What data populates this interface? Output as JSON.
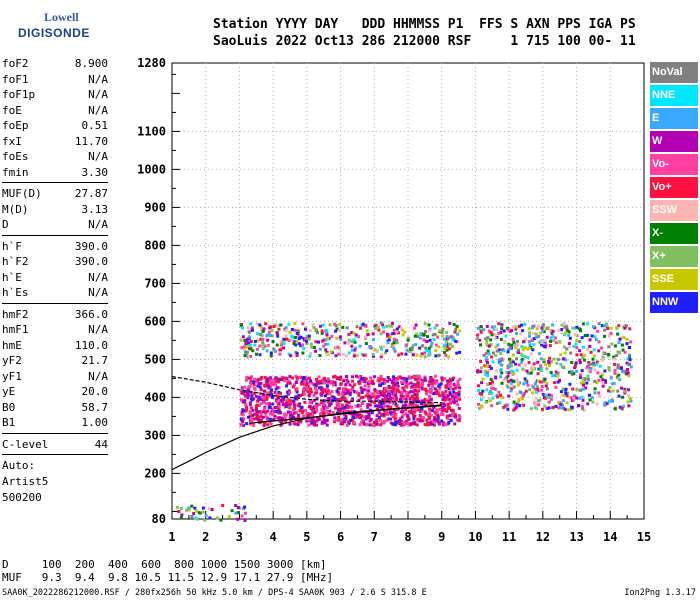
{
  "logo": {
    "line1": "Lowell",
    "line2": "DIGISONDE"
  },
  "header": {
    "row1": "Station YYYY DAY   DDD HHMMSS P1  FFS S AXN PPS IGA PS",
    "row2": "SaoLuis 2022 Oct13 286 212000 RSF     1 715 100 00- 11"
  },
  "params": {
    "group1": [
      {
        "label": "foF2",
        "value": "8.900"
      },
      {
        "label": "foF1",
        "value": "N/A"
      },
      {
        "label": "foF1p",
        "value": "N/A"
      },
      {
        "label": "foE",
        "value": "N/A"
      },
      {
        "label": "foEp",
        "value": "0.51"
      },
      {
        "label": "fxI",
        "value": "11.70"
      },
      {
        "label": "foEs",
        "value": "N/A"
      },
      {
        "label": "fmin",
        "value": "3.30"
      }
    ],
    "group2": [
      {
        "label": "MUF(D)",
        "value": "27.87"
      },
      {
        "label": "M(D)",
        "value": "3.13"
      },
      {
        "label": "D",
        "value": "N/A"
      }
    ],
    "group3": [
      {
        "label": "h`F",
        "value": "390.0"
      },
      {
        "label": "h`F2",
        "value": "390.0"
      },
      {
        "label": "h`E",
        "value": "N/A"
      },
      {
        "label": "h`Es",
        "value": "N/A"
      }
    ],
    "group4": [
      {
        "label": "hmF2",
        "value": "366.0"
      },
      {
        "label": "hmF1",
        "value": "N/A"
      },
      {
        "label": "hmE",
        "value": "110.0"
      },
      {
        "label": "yF2",
        "value": "21.7"
      },
      {
        "label": "yF1",
        "value": "N/A"
      },
      {
        "label": "yE",
        "value": "20.0"
      },
      {
        "label": "B0",
        "value": "58.7"
      },
      {
        "label": "B1",
        "value": "1.00"
      }
    ],
    "clevel": {
      "label": "C-level",
      "value": "44"
    },
    "auto": [
      "Auto:",
      "Artist5",
      "500200"
    ]
  },
  "legend": [
    {
      "label": "NoVal",
      "color": "#808080"
    },
    {
      "label": "NNE",
      "color": "#00e6ff"
    },
    {
      "label": "E",
      "color": "#3aa8ff"
    },
    {
      "label": "W",
      "color": "#b400b4"
    },
    {
      "label": "Vo-",
      "color": "#ff40a0"
    },
    {
      "label": "Vo+",
      "color": "#ff1040"
    },
    {
      "label": "SSW",
      "color": "#ffb4b4"
    },
    {
      "label": "X-",
      "color": "#008000"
    },
    {
      "label": "X+",
      "color": "#80c060"
    },
    {
      "label": "SSE",
      "color": "#c8c800"
    },
    {
      "label": "NNW",
      "color": "#2020ff"
    }
  ],
  "footer": {
    "d_row": "D     100  200  400  600  800 1000 1500 3000 [km]",
    "muf_row": "MUF   9.3  9.4  9.8 10.5 11.5 12.9 17.1 27.9 [MHz]",
    "file_row": "SAA0K_2022286212000.RSF / 280fx256h 50 kHz 5.0 km / DPS-4 SAA0K 903 / 2.6 S 315.8 E",
    "version": "Ion2Png 1.3.17"
  },
  "chart_data": {
    "type": "scatter",
    "title": "",
    "xlabel": "",
    "ylabel": "",
    "xlim": [
      1,
      15
    ],
    "ylim": [
      80,
      1280
    ],
    "x_ticks": [
      "1",
      "2",
      "3",
      "4",
      "5",
      "6",
      "7",
      "8",
      "9",
      "10",
      "11",
      "12",
      "13",
      "14",
      "15"
    ],
    "y_ticks": [
      "80",
      "200",
      "300",
      "400",
      "500",
      "600",
      "700",
      "800",
      "900",
      "1000",
      "1100",
      "1280"
    ],
    "grid": true,
    "legend_position": "right",
    "echo_regions": [
      {
        "name": "main F-trace",
        "x": [
          3.0,
          9.5
        ],
        "y": [
          330,
          460
        ]
      },
      {
        "name": "upper trace",
        "x": [
          3.0,
          9.5
        ],
        "y": [
          510,
          600
        ]
      },
      {
        "name": "spread F",
        "x": [
          10.0,
          14.6
        ],
        "y": [
          370,
          600
        ]
      },
      {
        "name": "low echoes",
        "x": [
          1.0,
          3.2
        ],
        "y": [
          80,
          120
        ]
      }
    ],
    "profile_curves": [
      {
        "name": "profile-upper",
        "x": [
          1.0,
          2.0,
          3.0,
          4.0,
          5.0,
          6.0,
          7.0,
          8.0,
          9.0
        ],
        "y": [
          455,
          440,
          420,
          405,
          395,
          390,
          390,
          388,
          386
        ]
      },
      {
        "name": "profile-lower",
        "x": [
          1.0,
          1.5,
          2.0,
          3.0,
          4.0,
          5.0,
          6.0,
          7.0,
          8.0,
          9.0
        ],
        "y": [
          210,
          232,
          255,
          295,
          325,
          345,
          358,
          366,
          373,
          380
        ]
      },
      {
        "name": "profile-trace",
        "x": [
          3.3,
          4.0,
          5.0,
          6.0,
          7.0,
          8.0,
          9.0
        ],
        "y": [
          332,
          338,
          346,
          356,
          365,
          372,
          378
        ]
      }
    ]
  }
}
